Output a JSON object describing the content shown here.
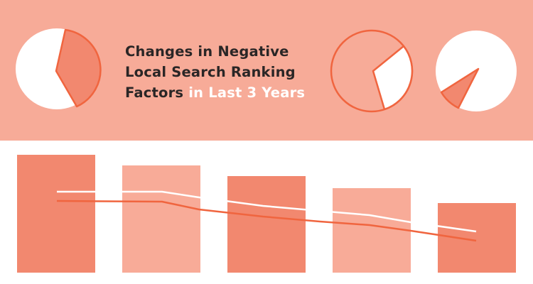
{
  "header": {
    "title_line1": "Changes in Negative",
    "title_line2": "Local Search Ranking",
    "title_line3_dark": "Factors",
    "title_line3_highlight": "in Last 3 Years"
  },
  "colors": {
    "band": "#f7ab98",
    "accent": "#f0653f",
    "bar_dark": "#f2886f",
    "bar_light": "#f8ab98",
    "title_dark": "#2a2626",
    "highlight": "#ffffff"
  }
}
